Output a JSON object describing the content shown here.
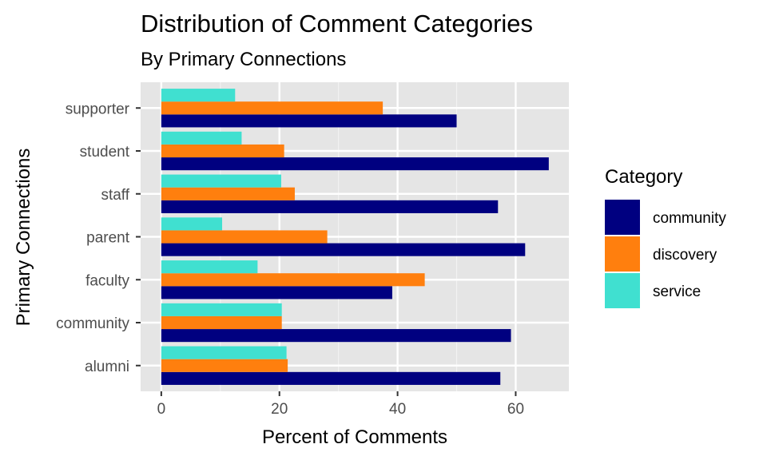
{
  "chart_data": {
    "type": "bar",
    "orientation": "horizontal",
    "title": "Distribution of Comment Categories",
    "subtitle": "By Primary Connections",
    "xlabel": "Percent of Comments",
    "ylabel": "Primary Connections",
    "xlim": [
      -3.5,
      69
    ],
    "x_ticks": [
      0,
      20,
      40,
      60
    ],
    "grid": true,
    "legend_position": "right",
    "legend_title": "Category",
    "categories": [
      "alumni",
      "community",
      "faculty",
      "parent",
      "staff",
      "student",
      "supporter"
    ],
    "series": [
      {
        "name": "community",
        "color": "#000080",
        "values": [
          57.4,
          59.2,
          39.1,
          61.6,
          57.0,
          65.6,
          50.0
        ]
      },
      {
        "name": "discovery",
        "color": "#FF7F0E",
        "values": [
          21.4,
          20.4,
          44.6,
          28.1,
          22.6,
          20.8,
          37.5
        ]
      },
      {
        "name": "service",
        "color": "#40E0D0",
        "values": [
          21.2,
          20.4,
          16.3,
          10.3,
          20.3,
          13.6,
          12.5
        ]
      }
    ]
  }
}
